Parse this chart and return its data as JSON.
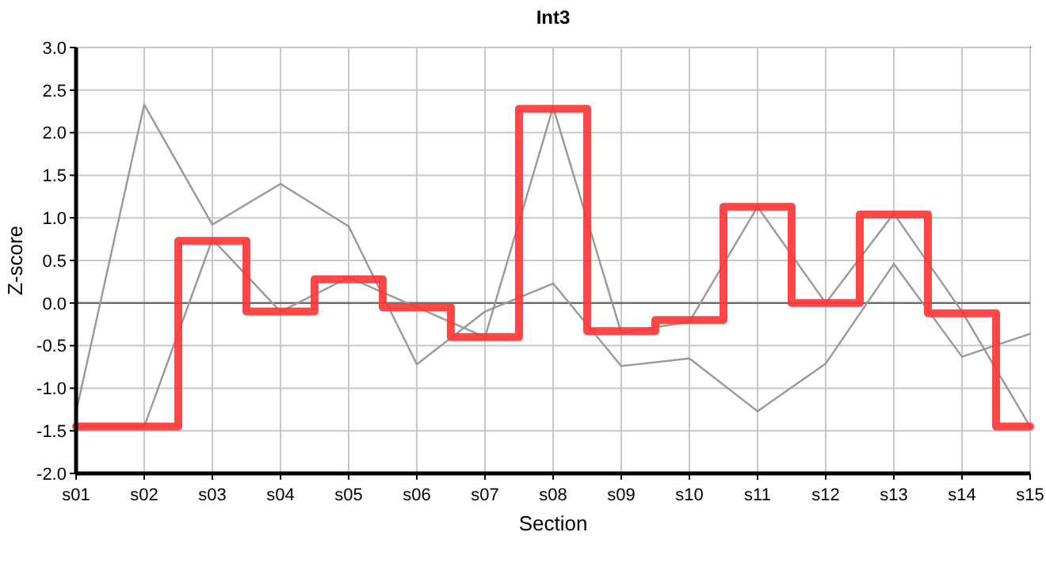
{
  "chart_data": {
    "type": "line",
    "title": "Int3",
    "xlabel": "Section",
    "ylabel": "Z-score",
    "categories": [
      "s01",
      "s02",
      "s03",
      "s04",
      "s05",
      "s06",
      "s07",
      "s08",
      "s09",
      "s10",
      "s11",
      "s12",
      "s13",
      "s14",
      "s15"
    ],
    "series": [
      {
        "color": "#999999",
        "values": [
          -1.28,
          2.33,
          0.92,
          1.4,
          0.9,
          -0.72,
          -0.1,
          0.23,
          -0.74,
          -0.65,
          -1.27,
          -0.71,
          0.46,
          -0.63,
          -0.36
        ]
      },
      {
        "color": "#999999",
        "values": [
          -1.45,
          -1.45,
          0.75,
          -0.1,
          0.3,
          -0.05,
          -0.4,
          2.3,
          -0.35,
          -0.22,
          1.13,
          0.0,
          1.05,
          -0.1,
          -1.45
        ]
      },
      {
        "type": "step",
        "color": "#ff3333",
        "values": [
          -1.45,
          -1.45,
          0.73,
          -0.1,
          0.28,
          -0.05,
          -0.4,
          2.28,
          -0.33,
          -0.2,
          1.13,
          0.0,
          1.04,
          -0.12,
          -1.45
        ]
      }
    ],
    "ylim": [
      -2,
      3
    ],
    "yticks": [
      {
        "value": -2,
        "label": "-2.0"
      },
      {
        "value": -1.5,
        "label": "-1.5"
      },
      {
        "value": -1,
        "label": "-1.0"
      },
      {
        "value": -0.5,
        "label": "-0.5"
      },
      {
        "value": 0,
        "label": "0.0"
      },
      {
        "value": 0.5,
        "label": "0.5"
      },
      {
        "value": 1,
        "label": "1.0"
      },
      {
        "value": 1.5,
        "label": "1.5"
      },
      {
        "value": 2,
        "label": "2.0"
      },
      {
        "value": 2.5,
        "label": "2.5"
      },
      {
        "value": 3,
        "label": "3.0"
      }
    ],
    "ref_lines": [
      {
        "axis": "y",
        "value": 0,
        "color": "#707070"
      }
    ],
    "grid": true
  }
}
